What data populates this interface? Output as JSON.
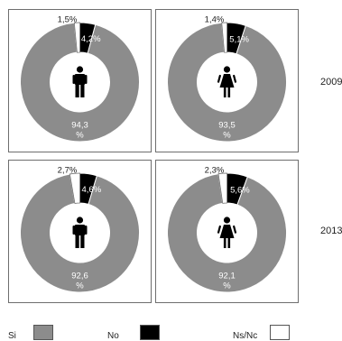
{
  "chart_data": {
    "type": "pie",
    "colors": {
      "si": "#8c8c8c",
      "no": "#000000",
      "nsnc": "#ffffff",
      "outline": "#6e6e6e"
    },
    "legend": {
      "placement": "bottom",
      "items": [
        {
          "key": "si",
          "label": "Si"
        },
        {
          "key": "no",
          "label": "No"
        },
        {
          "key": "nsnc",
          "label": "Ns/Nc"
        }
      ]
    },
    "rows": [
      {
        "year": "2009"
      },
      {
        "year": "2013"
      }
    ],
    "charts": [
      {
        "row": 0,
        "col": 0,
        "group_icon": "male-icon",
        "values": {
          "si": 94.3,
          "no": 4.2,
          "nsnc": 1.5
        },
        "labels": {
          "si_value": "94,3",
          "si_unit": "%",
          "no": "4,2%",
          "nsnc": "1,5%"
        }
      },
      {
        "row": 0,
        "col": 1,
        "group_icon": "female-icon",
        "values": {
          "si": 93.5,
          "no": 5.1,
          "nsnc": 1.4
        },
        "labels": {
          "si_value": "93,5",
          "si_unit": "%",
          "no": "5,1%",
          "nsnc": "1,4%"
        }
      },
      {
        "row": 1,
        "col": 0,
        "group_icon": "male-icon",
        "values": {
          "si": 92.6,
          "no": 4.6,
          "nsnc": 2.7
        },
        "labels": {
          "si_value": "92,6",
          "si_unit": "%",
          "no": "4,6%",
          "nsnc": "2,7%"
        }
      },
      {
        "row": 1,
        "col": 1,
        "group_icon": "female-icon",
        "values": {
          "si": 92.1,
          "no": 5.6,
          "nsnc": 2.3
        },
        "labels": {
          "si_value": "92,1",
          "si_unit": "%",
          "no": "5,6%",
          "nsnc": "2,3%"
        }
      }
    ]
  }
}
